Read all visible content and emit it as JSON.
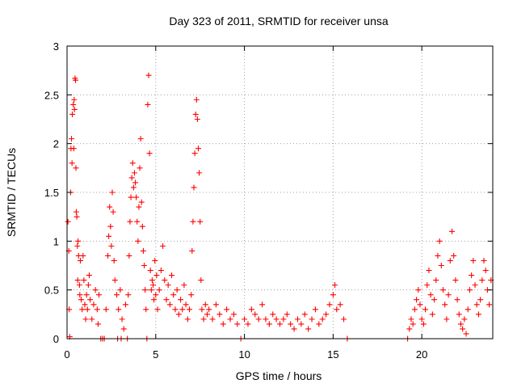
{
  "chart_data": {
    "type": "scatter",
    "title": "Day 323 of 2011, SRMTID for receiver unsa",
    "xlabel": "GPS time / hours",
    "ylabel": "SRMTID / TECUs",
    "xlim": [
      0,
      24
    ],
    "ylim": [
      0,
      3
    ],
    "x_ticks": [
      0,
      5,
      10,
      15,
      20
    ],
    "y_ticks": [
      0,
      0.5,
      1,
      1.5,
      2,
      2.5,
      3
    ],
    "x_tick_labels": [
      "0",
      "5",
      "10",
      "15",
      "20"
    ],
    "y_tick_labels": [
      "0",
      "0.5",
      "1",
      "1.5",
      "2",
      "2.5",
      "3"
    ],
    "grid": true,
    "marker": "plus",
    "series": [
      {
        "name": "SRMTID",
        "color": "#ff0000",
        "points": [
          [
            0.05,
            1.2
          ],
          [
            0.1,
            0.9
          ],
          [
            0.12,
            0.3
          ],
          [
            0.15,
            0.02
          ],
          [
            0.2,
            1.5
          ],
          [
            0.22,
            1.95
          ],
          [
            0.25,
            2.05
          ],
          [
            0.28,
            1.8
          ],
          [
            0.3,
            2.3
          ],
          [
            0.35,
            2.4
          ],
          [
            0.38,
            1.95
          ],
          [
            0.4,
            2.45
          ],
          [
            0.42,
            2.35
          ],
          [
            0.45,
            2.67
          ],
          [
            0.48,
            2.65
          ],
          [
            0.5,
            1.75
          ],
          [
            0.52,
            1.3
          ],
          [
            0.55,
            1.25
          ],
          [
            0.58,
            0.95
          ],
          [
            0.6,
            0.6
          ],
          [
            0.62,
            1.0
          ],
          [
            0.65,
            0.85
          ],
          [
            0.7,
            0.55
          ],
          [
            0.72,
            0.45
          ],
          [
            0.75,
            0.8
          ],
          [
            0.8,
            0.4
          ],
          [
            0.85,
            0.3
          ],
          [
            0.9,
            0.85
          ],
          [
            0.95,
            0.6
          ],
          [
            1.0,
            0.35
          ],
          [
            1.05,
            0.2
          ],
          [
            1.1,
            0.45
          ],
          [
            1.15,
            0.3
          ],
          [
            1.2,
            0.55
          ],
          [
            1.25,
            0.65
          ],
          [
            1.3,
            0.4
          ],
          [
            1.4,
            0.2
          ],
          [
            1.5,
            0.35
          ],
          [
            1.6,
            0.5
          ],
          [
            1.7,
            0.3
          ],
          [
            1.75,
            0.15
          ],
          [
            1.8,
            0.45
          ],
          [
            1.9,
            0.0
          ],
          [
            2.0,
            0.0
          ],
          [
            2.1,
            0.0
          ],
          [
            2.2,
            0.3
          ],
          [
            2.3,
            0.85
          ],
          [
            2.35,
            1.05
          ],
          [
            2.4,
            1.35
          ],
          [
            2.45,
            1.15
          ],
          [
            2.5,
            0.95
          ],
          [
            2.55,
            1.5
          ],
          [
            2.6,
            1.3
          ],
          [
            2.65,
            0.8
          ],
          [
            2.7,
            0.6
          ],
          [
            2.8,
            0.45
          ],
          [
            2.85,
            0.0
          ],
          [
            2.9,
            0.3
          ],
          [
            3.0,
            0.5
          ],
          [
            3.05,
            0.0
          ],
          [
            3.1,
            0.2
          ],
          [
            3.2,
            0.1
          ],
          [
            3.3,
            0.35
          ],
          [
            3.4,
            0.0
          ],
          [
            3.45,
            0.45
          ],
          [
            3.5,
            0.85
          ],
          [
            3.55,
            1.2
          ],
          [
            3.6,
            1.45
          ],
          [
            3.65,
            1.65
          ],
          [
            3.7,
            1.8
          ],
          [
            3.75,
            1.55
          ],
          [
            3.8,
            1.7
          ],
          [
            3.85,
            1.6
          ],
          [
            3.9,
            1.45
          ],
          [
            3.95,
            1.2
          ],
          [
            4.0,
            1.0
          ],
          [
            4.05,
            1.35
          ],
          [
            4.1,
            1.75
          ],
          [
            4.15,
            2.05
          ],
          [
            4.2,
            1.4
          ],
          [
            4.25,
            1.15
          ],
          [
            4.3,
            0.9
          ],
          [
            4.35,
            0.75
          ],
          [
            4.4,
            0.5
          ],
          [
            4.45,
            0.3
          ],
          [
            4.5,
            0.0
          ],
          [
            4.55,
            2.4
          ],
          [
            4.6,
            2.7
          ],
          [
            4.65,
            1.9
          ],
          [
            4.7,
            0.7
          ],
          [
            4.75,
            0.5
          ],
          [
            4.8,
            0.6
          ],
          [
            4.85,
            0.55
          ],
          [
            4.9,
            0.4
          ],
          [
            4.95,
            0.8
          ],
          [
            5.0,
            0.45
          ],
          [
            5.05,
            0.65
          ],
          [
            5.1,
            0.3
          ],
          [
            5.2,
            0.5
          ],
          [
            5.3,
            0.7
          ],
          [
            5.4,
            0.95
          ],
          [
            5.5,
            0.6
          ],
          [
            5.6,
            0.4
          ],
          [
            5.7,
            0.55
          ],
          [
            5.8,
            0.35
          ],
          [
            5.9,
            0.65
          ],
          [
            6.0,
            0.45
          ],
          [
            6.1,
            0.3
          ],
          [
            6.2,
            0.5
          ],
          [
            6.3,
            0.25
          ],
          [
            6.4,
            0.4
          ],
          [
            6.5,
            0.3
          ],
          [
            6.6,
            0.55
          ],
          [
            6.7,
            0.35
          ],
          [
            6.8,
            0.2
          ],
          [
            6.9,
            0.3
          ],
          [
            7.0,
            0.45
          ],
          [
            7.05,
            0.9
          ],
          [
            7.1,
            1.2
          ],
          [
            7.15,
            1.55
          ],
          [
            7.2,
            1.9
          ],
          [
            7.25,
            2.3
          ],
          [
            7.3,
            2.45
          ],
          [
            7.35,
            2.25
          ],
          [
            7.4,
            1.95
          ],
          [
            7.45,
            1.7
          ],
          [
            7.5,
            1.2
          ],
          [
            7.55,
            0.6
          ],
          [
            7.6,
            0.3
          ],
          [
            7.7,
            0.2
          ],
          [
            7.8,
            0.35
          ],
          [
            7.9,
            0.25
          ],
          [
            8.0,
            0.3
          ],
          [
            8.2,
            0.2
          ],
          [
            8.4,
            0.35
          ],
          [
            8.6,
            0.25
          ],
          [
            8.8,
            0.15
          ],
          [
            9.0,
            0.3
          ],
          [
            9.2,
            0.2
          ],
          [
            9.4,
            0.25
          ],
          [
            9.6,
            0.15
          ],
          [
            9.8,
            0.0
          ],
          [
            10.0,
            0.2
          ],
          [
            10.2,
            0.15
          ],
          [
            10.4,
            0.3
          ],
          [
            10.6,
            0.25
          ],
          [
            10.8,
            0.2
          ],
          [
            11.0,
            0.35
          ],
          [
            11.2,
            0.2
          ],
          [
            11.4,
            0.15
          ],
          [
            11.6,
            0.25
          ],
          [
            11.8,
            0.2
          ],
          [
            12.0,
            0.15
          ],
          [
            12.2,
            0.2
          ],
          [
            12.4,
            0.25
          ],
          [
            12.6,
            0.15
          ],
          [
            12.8,
            0.1
          ],
          [
            13.0,
            0.2
          ],
          [
            13.2,
            0.15
          ],
          [
            13.4,
            0.25
          ],
          [
            13.6,
            0.1
          ],
          [
            13.8,
            0.2
          ],
          [
            14.0,
            0.3
          ],
          [
            14.2,
            0.15
          ],
          [
            14.4,
            0.2
          ],
          [
            14.6,
            0.25
          ],
          [
            14.8,
            0.35
          ],
          [
            15.0,
            0.45
          ],
          [
            15.1,
            0.55
          ],
          [
            15.2,
            0.3
          ],
          [
            15.4,
            0.35
          ],
          [
            15.6,
            0.2
          ],
          [
            15.8,
            0.0
          ],
          [
            19.2,
            0.0
          ],
          [
            19.3,
            0.1
          ],
          [
            19.4,
            0.2
          ],
          [
            19.5,
            0.15
          ],
          [
            19.6,
            0.3
          ],
          [
            19.7,
            0.4
          ],
          [
            19.8,
            0.5
          ],
          [
            19.9,
            0.35
          ],
          [
            20.0,
            0.2
          ],
          [
            20.1,
            0.15
          ],
          [
            20.2,
            0.3
          ],
          [
            20.3,
            0.55
          ],
          [
            20.4,
            0.7
          ],
          [
            20.5,
            0.45
          ],
          [
            20.6,
            0.25
          ],
          [
            20.7,
            0.4
          ],
          [
            20.8,
            0.6
          ],
          [
            20.9,
            0.85
          ],
          [
            21.0,
            1.0
          ],
          [
            21.1,
            0.75
          ],
          [
            21.2,
            0.5
          ],
          [
            21.3,
            0.35
          ],
          [
            21.4,
            0.2
          ],
          [
            21.5,
            0.45
          ],
          [
            21.6,
            0.8
          ],
          [
            21.7,
            1.1
          ],
          [
            21.8,
            0.85
          ],
          [
            21.9,
            0.6
          ],
          [
            22.0,
            0.4
          ],
          [
            22.1,
            0.25
          ],
          [
            22.2,
            0.15
          ],
          [
            22.3,
            0.1
          ],
          [
            22.4,
            0.2
          ],
          [
            22.5,
            0.05
          ],
          [
            22.6,
            0.3
          ],
          [
            22.7,
            0.5
          ],
          [
            22.8,
            0.65
          ],
          [
            22.9,
            0.8
          ],
          [
            23.0,
            0.55
          ],
          [
            23.1,
            0.35
          ],
          [
            23.2,
            0.25
          ],
          [
            23.3,
            0.4
          ],
          [
            23.4,
            0.6
          ],
          [
            23.5,
            0.8
          ],
          [
            23.6,
            0.7
          ],
          [
            23.7,
            0.5
          ],
          [
            23.8,
            0.35
          ],
          [
            23.9,
            0.6
          ]
        ]
      }
    ]
  }
}
